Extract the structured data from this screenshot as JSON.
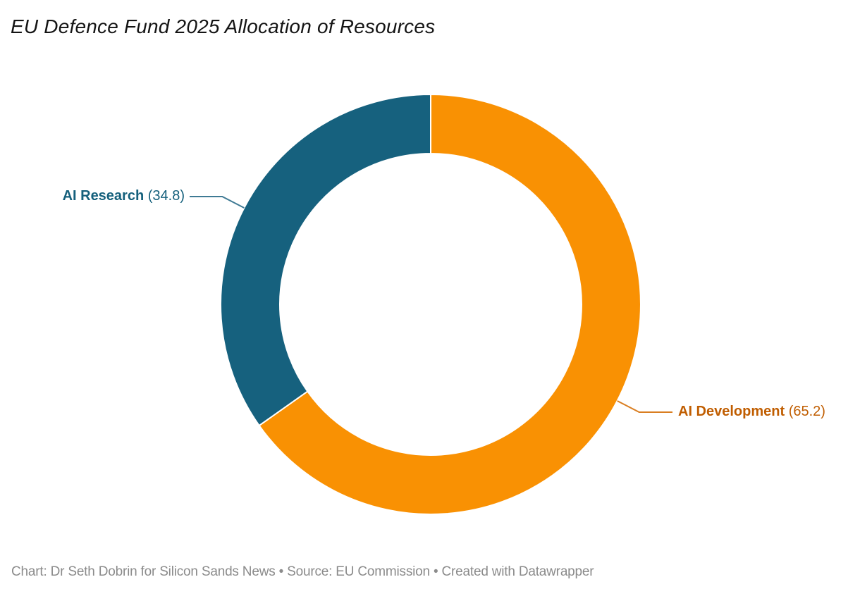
{
  "title": "EU Defence Fund 2025 Allocation of Resources",
  "footer": {
    "text": "Chart: Dr Seth Dobrin for Silicon Sands News • Source: EU Commission • Created with Datawrapper"
  },
  "chart_data": {
    "type": "pie",
    "subtype": "donut",
    "title": "EU Defence Fund 2025 Allocation of Resources",
    "total": 100,
    "direction": "counterclockwise",
    "start_angle_deg": 0,
    "legend_position": "outside-callouts",
    "inner_radius_ratio": 0.72,
    "background": "#ffffff",
    "slices": [
      {
        "label": "AI Research",
        "value": 34.8,
        "value_display": "(34.8)",
        "color": "#16617e",
        "label_color": "#15607c",
        "line_color": "#3f7a94",
        "callout_side": "left"
      },
      {
        "label": "AI Development",
        "value": 65.2,
        "value_display": "(65.2)",
        "color": "#f99103",
        "label_color": "#c05d00",
        "line_color": "#d97e21",
        "callout_side": "right"
      }
    ],
    "credits": {
      "chart_byline": "Dr Seth Dobrin for Silicon Sands News",
      "source": "EU Commission",
      "tool": "Datawrapper"
    }
  }
}
